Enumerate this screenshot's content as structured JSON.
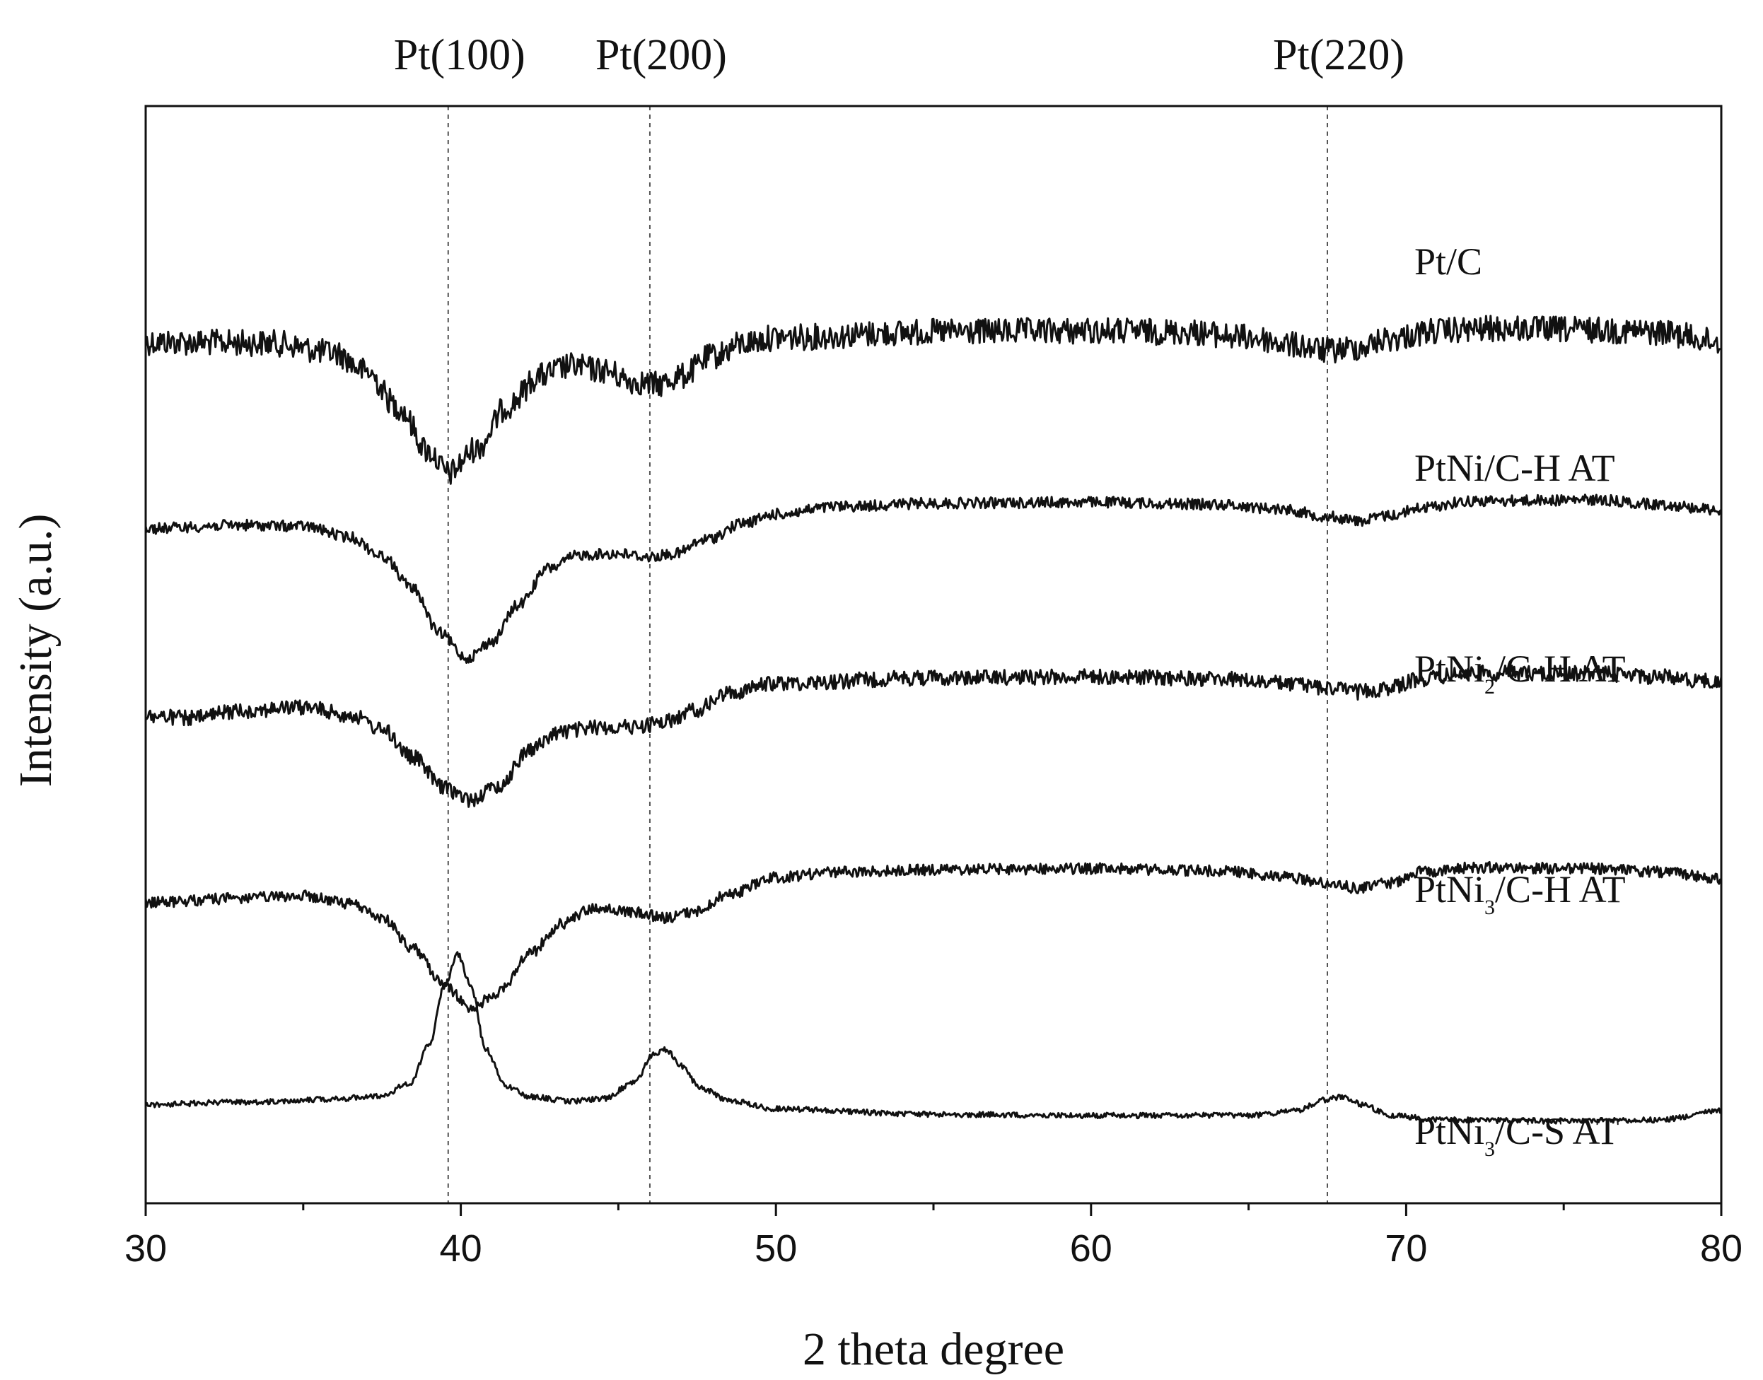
{
  "chart_data": {
    "type": "line",
    "xlabel": "2 theta degree",
    "ylabel": "Intensity (a.u.)",
    "xlim": [
      30,
      80
    ],
    "xticks": [
      30,
      40,
      50,
      60,
      70,
      80
    ],
    "ylim": [
      0,
      100
    ],
    "y_ticks_labeled": false,
    "grid": false,
    "legend": "inline labels at right",
    "reference_lines": [
      {
        "label": "Pt(100)",
        "x": 39.6
      },
      {
        "label": "Pt(200)",
        "x": 46.0
      },
      {
        "label": "Pt(220)",
        "x": 67.5
      }
    ],
    "series": [
      {
        "name": "Pt/C",
        "label_html": "Pt/C",
        "noise": 1.2,
        "points": [
          [
            30,
            21.5
          ],
          [
            34,
            21.6
          ],
          [
            36,
            22.5
          ],
          [
            37,
            24.2
          ],
          [
            38,
            27.4
          ],
          [
            39,
            31.5
          ],
          [
            39.6,
            33.5
          ],
          [
            40.5,
            31.2
          ],
          [
            41.5,
            27.3
          ],
          [
            42.5,
            24.6
          ],
          [
            43.5,
            23.7
          ],
          [
            44.5,
            24.1
          ],
          [
            45.5,
            25.1
          ],
          [
            46.2,
            25.4
          ],
          [
            47,
            24.6
          ],
          [
            48,
            22.8
          ],
          [
            49,
            21.6
          ],
          [
            50,
            21.1
          ],
          [
            55,
            20.6
          ],
          [
            60,
            20.5
          ],
          [
            63,
            20.6
          ],
          [
            65,
            21.1
          ],
          [
            66.5,
            21.8
          ],
          [
            67.5,
            22.3
          ],
          [
            68.5,
            22.0
          ],
          [
            69.5,
            21.2
          ],
          [
            71,
            20.5
          ],
          [
            73,
            20.3
          ],
          [
            76,
            20.4
          ],
          [
            78,
            20.6
          ],
          [
            80,
            21.5
          ]
        ]
      },
      {
        "name": "PtNi/C-H AT",
        "label_html": "PtNi/C-H AT",
        "noise": 0.5,
        "points": [
          [
            30,
            38.5
          ],
          [
            33,
            38.2
          ],
          [
            35,
            38.3
          ],
          [
            36.5,
            39.3
          ],
          [
            37.5,
            41.0
          ],
          [
            38.5,
            44.0
          ],
          [
            39.3,
            48.0
          ],
          [
            40.2,
            50.3
          ],
          [
            41,
            48.8
          ],
          [
            41.8,
            45.5
          ],
          [
            42.8,
            42.1
          ],
          [
            43.8,
            40.9
          ],
          [
            45,
            40.8
          ],
          [
            46,
            41.1
          ],
          [
            46.8,
            40.8
          ],
          [
            47.8,
            39.5
          ],
          [
            49,
            38.0
          ],
          [
            50,
            37.2
          ],
          [
            52,
            36.5
          ],
          [
            55,
            36.2
          ],
          [
            60,
            36.1
          ],
          [
            64,
            36.3
          ],
          [
            66,
            36.7
          ],
          [
            67.5,
            37.4
          ],
          [
            68.5,
            37.8
          ],
          [
            69.5,
            37.3
          ],
          [
            70.5,
            36.6
          ],
          [
            72,
            36.0
          ],
          [
            76,
            35.9
          ],
          [
            78,
            36.3
          ],
          [
            80,
            36.8
          ]
        ]
      },
      {
        "name": "PtNi2/C-H AT",
        "label_html": "PtNi<tspan baseline-shift=\"sub\" font-size=\"30\">2</tspan>/C-H AT",
        "noise": 0.7,
        "points": [
          [
            30,
            55.6
          ],
          [
            31.5,
            55.8
          ],
          [
            33,
            55.1
          ],
          [
            35,
            54.8
          ],
          [
            36.5,
            55.5
          ],
          [
            37.5,
            56.8
          ],
          [
            38.5,
            59.4
          ],
          [
            39.5,
            62.2
          ],
          [
            40.3,
            63.2
          ],
          [
            41.2,
            62.0
          ],
          [
            42.2,
            58.6
          ],
          [
            43.2,
            57.0
          ],
          [
            44.5,
            56.6
          ],
          [
            45.5,
            56.6
          ],
          [
            46.5,
            56.1
          ],
          [
            47.5,
            55.0
          ],
          [
            48.5,
            53.5
          ],
          [
            50,
            52.6
          ],
          [
            55,
            52.1
          ],
          [
            60,
            52.0
          ],
          [
            64,
            52.2
          ],
          [
            66,
            52.6
          ],
          [
            67.5,
            53.0
          ],
          [
            68.5,
            53.4
          ],
          [
            69.5,
            53.0
          ],
          [
            70.5,
            52.2
          ],
          [
            72,
            51.7
          ],
          [
            76,
            51.7
          ],
          [
            78,
            52.0
          ],
          [
            80,
            52.5
          ]
        ]
      },
      {
        "name": "PtNi3/C-H AT",
        "label_html": "PtNi<tspan baseline-shift=\"sub\" font-size=\"30\">3</tspan>/C-H AT",
        "noise": 0.5,
        "points": [
          [
            30,
            72.6
          ],
          [
            33,
            72.2
          ],
          [
            35,
            72.0
          ],
          [
            36.5,
            72.7
          ],
          [
            37.5,
            74.0
          ],
          [
            38.5,
            76.8
          ],
          [
            39.5,
            80.2
          ],
          [
            40.3,
            82.2
          ],
          [
            41.2,
            80.8
          ],
          [
            42.2,
            77.2
          ],
          [
            43.2,
            74.5
          ],
          [
            44.2,
            73.1
          ],
          [
            45.5,
            73.5
          ],
          [
            46.5,
            74.0
          ],
          [
            47.5,
            73.4
          ],
          [
            48.5,
            71.8
          ],
          [
            50,
            70.3
          ],
          [
            52,
            69.8
          ],
          [
            55,
            69.6
          ],
          [
            60,
            69.5
          ],
          [
            64,
            69.7
          ],
          [
            66,
            70.2
          ],
          [
            67.5,
            70.8
          ],
          [
            68.5,
            71.3
          ],
          [
            69.5,
            70.8
          ],
          [
            70.5,
            69.8
          ],
          [
            72,
            69.4
          ],
          [
            76,
            69.5
          ],
          [
            78,
            69.8
          ],
          [
            80,
            70.4
          ]
        ]
      },
      {
        "name": "PtNi3/C-S AT",
        "label_html": "PtNi<tspan baseline-shift=\"sub\" font-size=\"30\">3</tspan>/C-S AT",
        "noise": 0.25,
        "points": [
          [
            30,
            91.0
          ],
          [
            33,
            90.8
          ],
          [
            36,
            90.5
          ],
          [
            37.5,
            90.2
          ],
          [
            38.4,
            89.0
          ],
          [
            39.0,
            85.5
          ],
          [
            39.5,
            80.0
          ],
          [
            39.9,
            77.3
          ],
          [
            40.3,
            80.0
          ],
          [
            40.8,
            86.0
          ],
          [
            41.4,
            89.3
          ],
          [
            42.2,
            90.3
          ],
          [
            43.5,
            90.7
          ],
          [
            44.5,
            90.5
          ],
          [
            45.5,
            89.0
          ],
          [
            46.1,
            86.5
          ],
          [
            46.5,
            86.0
          ],
          [
            47.0,
            87.5
          ],
          [
            47.6,
            89.5
          ],
          [
            48.5,
            90.6
          ],
          [
            50,
            91.4
          ],
          [
            55,
            91.9
          ],
          [
            60,
            92.0
          ],
          [
            65,
            92.0
          ],
          [
            66.5,
            91.6
          ],
          [
            67.4,
            90.6
          ],
          [
            68.0,
            90.3
          ],
          [
            68.6,
            91.0
          ],
          [
            69.5,
            92.0
          ],
          [
            71,
            92.4
          ],
          [
            75,
            92.5
          ],
          [
            78,
            92.4
          ],
          [
            80,
            91.6
          ]
        ]
      }
    ]
  }
}
